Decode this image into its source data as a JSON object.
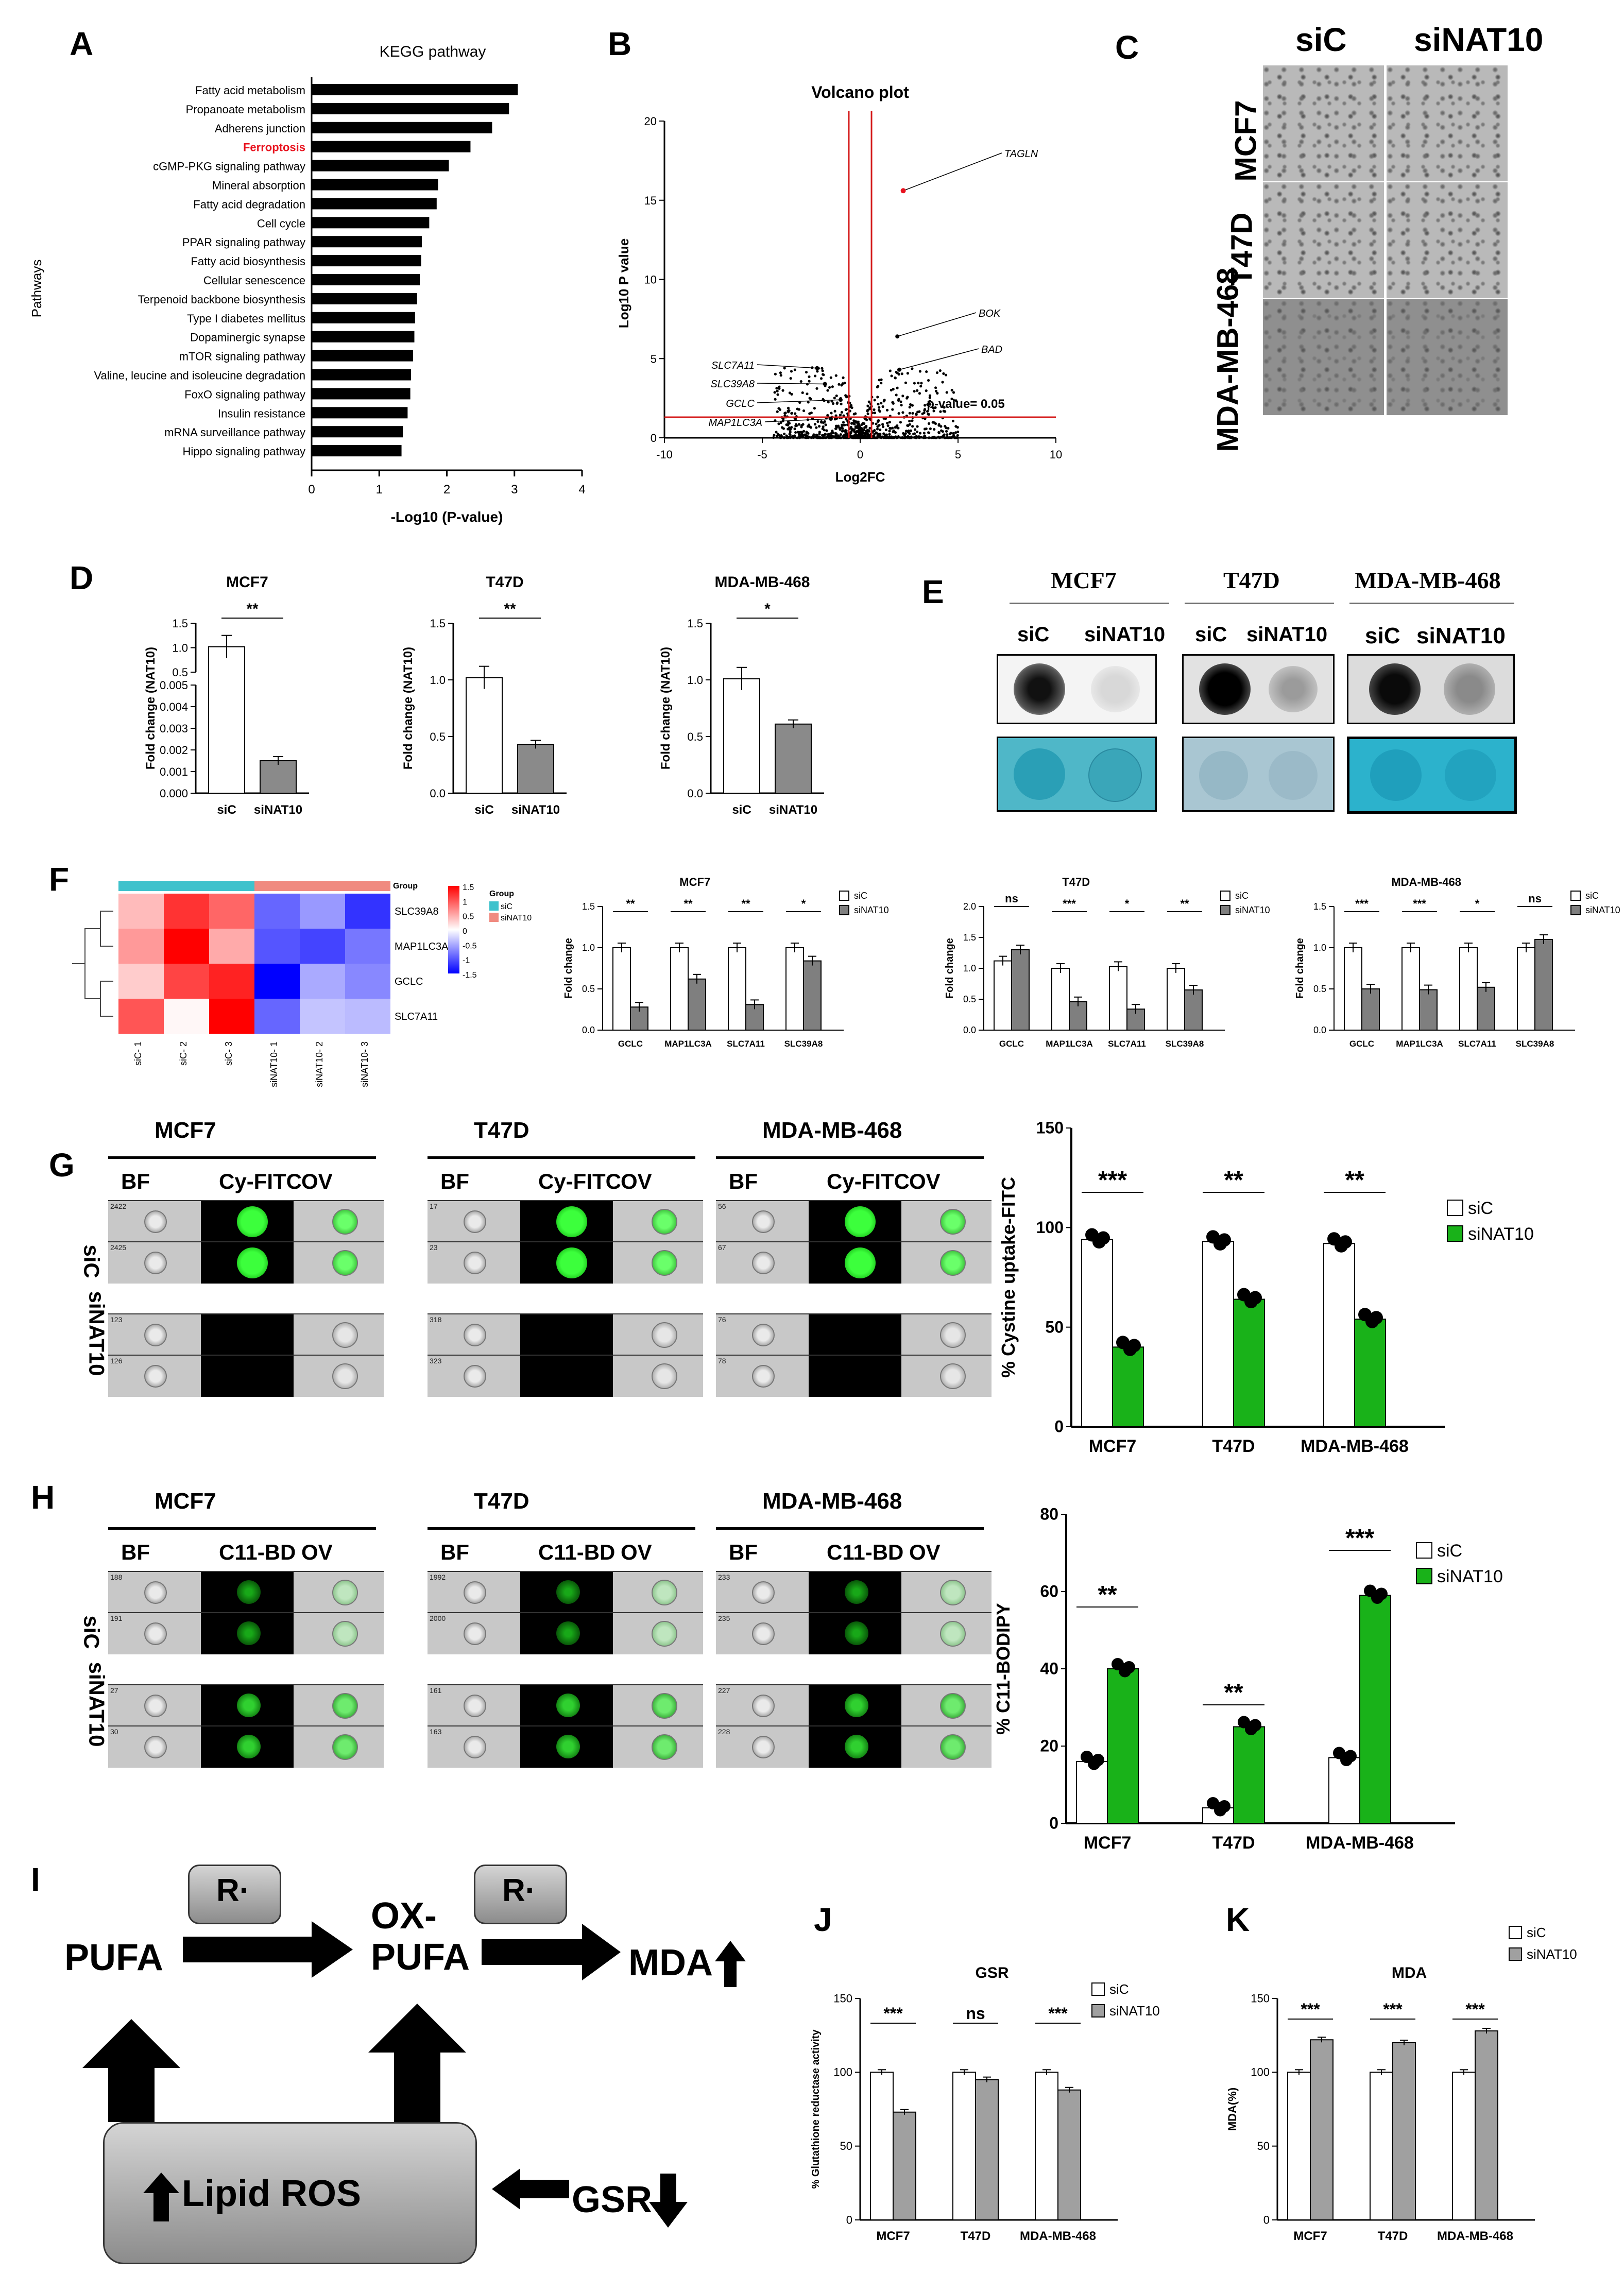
{
  "panels": [
    "A",
    "B",
    "C",
    "D",
    "E",
    "F",
    "G",
    "H",
    "I",
    "J",
    "K"
  ],
  "panel_a": {
    "chart_data": {
      "type": "bar",
      "title": "KEGG pathway",
      "xlabel": "-Log10 (P-value)",
      "ylabel": "Pathways",
      "categories": [
        "Fatty acid metabolism",
        "Propanoate metabolism",
        "Adherens junction",
        "Ferroptosis",
        "cGMP-PKG signaling pathway",
        "Mineral absorption",
        "Fatty acid degradation",
        "Cell cycle",
        "PPAR signaling pathway",
        "Fatty acid biosynthesis",
        "Cellular senescence",
        "Terpenoid backbone biosynthesis",
        "Type I diabetes mellitus",
        "Dopaminergic synapse",
        "mTOR signaling pathway",
        "Valine, leucine and isoleucine degradation",
        "FoxO signaling pathway",
        "Insulin resistance",
        "mRNA surveillance pathway",
        "Hippo signaling pathway"
      ],
      "values": [
        3.05,
        2.92,
        2.67,
        2.35,
        2.03,
        1.87,
        1.85,
        1.74,
        1.63,
        1.62,
        1.6,
        1.56,
        1.53,
        1.52,
        1.5,
        1.47,
        1.46,
        1.42,
        1.35,
        1.33
      ],
      "highlight": "Ferroptosis",
      "highlight_color": "#e8121e",
      "xlim": [
        0,
        4
      ],
      "xticks": [
        "0",
        "1",
        "2",
        "3",
        "4"
      ]
    }
  },
  "panel_b": {
    "chart_data": {
      "type": "scatter",
      "title": "Volcano plot",
      "xlabel": "Log2FC",
      "ylabel": "Log10 P value",
      "xlim": [
        -10,
        10
      ],
      "ylim": [
        0,
        20
      ],
      "xticks": [
        "-10",
        "-5",
        "0",
        "5",
        "10"
      ],
      "yticks": [
        "0",
        "5",
        "10",
        "15",
        "20"
      ],
      "threshold_text": "p-value= 0.05",
      "annotations": [
        {
          "label": "TAGLN",
          "x": 2.2,
          "y": 15.6,
          "color": "#e8121e"
        },
        {
          "label": "BOK",
          "x": 1.9,
          "y": 6.4
        },
        {
          "label": "BAD",
          "x": 2.0,
          "y": 4.3
        },
        {
          "label": "SLC7A11",
          "x": -2.2,
          "y": 4.4
        },
        {
          "label": "SLC39A8",
          "x": -1.8,
          "y": 3.4
        },
        {
          "label": "GCLC",
          "x": -1.0,
          "y": 2.4
        },
        {
          "label": "MAP1LC3A",
          "x": -1.5,
          "y": 1.2
        }
      ]
    }
  },
  "panel_c": {
    "columns": [
      "siC",
      "siNAT10"
    ],
    "rows": [
      "MCF7",
      "T47D",
      "MDA-MB-468"
    ]
  },
  "panel_d": {
    "charts": [
      {
        "title": "MCF7",
        "ylabel": "Fold change (NAT10)",
        "categories": [
          "siC",
          "siNAT10"
        ],
        "values": [
          1.02,
          0.0015
        ],
        "sig": "**",
        "yticks": [
          "0.000",
          "0.001",
          "0.002",
          "0.003",
          "0.004",
          "0.005",
          "0.5",
          "1.0",
          "1.5"
        ]
      },
      {
        "title": "T47D",
        "ylabel": "Fold change (NAT10)",
        "categories": [
          "siC",
          "siNAT10"
        ],
        "values": [
          1.02,
          0.43
        ],
        "sig": "**",
        "yticks": [
          "0.0",
          "0.5",
          "1.0",
          "1.5"
        ]
      },
      {
        "title": "MDA-MB-468",
        "ylabel": "Fold change (NAT10)",
        "categories": [
          "siC",
          "siNAT10"
        ],
        "values": [
          1.01,
          0.61
        ],
        "sig": "*",
        "yticks": [
          "0.0",
          "0.5",
          "1.0",
          "1.5"
        ]
      }
    ]
  },
  "panel_e": {
    "lines": [
      "MCF7",
      "T47D",
      "MDA-MB-468"
    ],
    "lanes": [
      "siC",
      "siNAT10"
    ]
  },
  "panel_f": {
    "heatmap": {
      "group_label": "Group",
      "legend_items": [
        "siC",
        "siNAT10"
      ],
      "legend_colors": [
        "#3fc2cc",
        "#f08a80"
      ],
      "scale_ticks": [
        "1.5",
        "1",
        "0.5",
        "0",
        "-0.5",
        "-1",
        "-1.5"
      ],
      "genes": [
        "SLC39A8",
        "MAP1LC3A",
        "GCLC",
        "SLC7A11"
      ],
      "samples": [
        "siC- 1",
        "siC- 2",
        "siC- 3",
        "siNAT10- 1",
        "siNAT10- 2",
        "siNAT10- 3"
      ],
      "values": [
        [
          0.4,
          1.2,
          0.9,
          -0.9,
          -0.6,
          -1.2
        ],
        [
          0.6,
          1.6,
          0.5,
          -1.0,
          -1.1,
          -0.8
        ],
        [
          0.3,
          1.1,
          1.3,
          -1.5,
          -0.5,
          -0.7
        ],
        [
          1.0,
          0.05,
          1.5,
          -0.9,
          -0.35,
          -0.4
        ]
      ]
    },
    "chart_data": [
      {
        "type": "bar",
        "title": "MCF7",
        "ylabel": "Fold change",
        "categories": [
          "GCLC",
          "MAP1LC3A",
          "SLC7A11",
          "SLC39A8"
        ],
        "series": [
          {
            "name": "siC",
            "values": [
              1.0,
              1.0,
              1.0,
              1.0
            ]
          },
          {
            "name": "siNAT10",
            "values": [
              0.28,
              0.62,
              0.31,
              0.84
            ]
          }
        ],
        "sig": [
          "**",
          "**",
          "**",
          "*"
        ],
        "ylim": [
          0,
          1.5
        ],
        "yticks": [
          "0.0",
          "0.5",
          "1.0",
          "1.5"
        ]
      },
      {
        "type": "bar",
        "title": "T47D",
        "ylabel": "Fold change",
        "categories": [
          "GCLC",
          "MAP1LC3A",
          "SLC7A11",
          "SLC39A8"
        ],
        "series": [
          {
            "name": "siC",
            "values": [
              1.12,
              1.0,
              1.03,
              1.0
            ]
          },
          {
            "name": "siNAT10",
            "values": [
              1.3,
              0.46,
              0.34,
              0.65
            ]
          }
        ],
        "sig": [
          "ns",
          "***",
          "*",
          "**"
        ],
        "ylim": [
          0,
          2.0
        ],
        "yticks": [
          "0.0",
          "0.5",
          "1.0",
          "1.5",
          "2.0"
        ]
      },
      {
        "type": "bar",
        "title": "MDA-MB-468",
        "ylabel": "Fold change",
        "categories": [
          "GCLC",
          "MAP1LC3A",
          "SLC7A11",
          "SLC39A8"
        ],
        "series": [
          {
            "name": "siC",
            "values": [
              1.0,
              1.0,
              1.0,
              1.0
            ]
          },
          {
            "name": "siNAT10",
            "values": [
              0.5,
              0.49,
              0.52,
              1.1
            ]
          }
        ],
        "sig": [
          "***",
          "***",
          "*",
          "ns"
        ],
        "ylim": [
          0,
          1.5
        ],
        "yticks": [
          "0.0",
          "0.5",
          "1.0",
          "1.5"
        ]
      }
    ]
  },
  "panel_g": {
    "lines": [
      "MCF7",
      "T47D",
      "MDA-MB-468"
    ],
    "channels": [
      "BF",
      "Cy-FITC",
      "OV"
    ],
    "rows": [
      "siC",
      "siNAT10"
    ],
    "cell_ids": [
      [
        "2422",
        "2425",
        "123",
        "126"
      ],
      [
        "17",
        "23",
        "318",
        "323"
      ],
      [
        "56",
        "67",
        "76",
        "78"
      ]
    ],
    "chart_data": {
      "type": "bar",
      "ylabel": "% Cystine uptake-FITC",
      "categories": [
        "MCF7",
        "T47D",
        "MDA-MB-468"
      ],
      "series": [
        {
          "name": "siC",
          "values": [
            94,
            93,
            92
          ],
          "color": "#ffffff"
        },
        {
          "name": "siNAT10",
          "values": [
            40,
            64,
            54
          ],
          "color": "#19b219"
        }
      ],
      "sig": [
        "***",
        "**",
        "**"
      ],
      "ylim": [
        0,
        150
      ],
      "yticks": [
        "0",
        "50",
        "100",
        "150"
      ]
    }
  },
  "panel_h": {
    "lines": [
      "MCF7",
      "T47D",
      "MDA-MB-468"
    ],
    "channels": [
      "BF",
      "C11-BD",
      "OV"
    ],
    "rows": [
      "siC",
      "siNAT10"
    ],
    "cell_ids": [
      [
        "188",
        "191",
        "27",
        "30"
      ],
      [
        "1992",
        "2000",
        "161",
        "163"
      ],
      [
        "233",
        "235",
        "227",
        "228"
      ]
    ],
    "chart_data": {
      "type": "bar",
      "ylabel": "% C11-BODIPY",
      "categories": [
        "MCF7",
        "T47D",
        "MDA-MB-468"
      ],
      "series": [
        {
          "name": "siC",
          "values": [
            16,
            4,
            17
          ],
          "color": "#ffffff"
        },
        {
          "name": "siNAT10",
          "values": [
            40,
            25,
            59
          ],
          "color": "#19b219"
        }
      ],
      "sig": [
        "**",
        "**",
        "***"
      ],
      "ylim": [
        0,
        80
      ],
      "yticks": [
        "0",
        "20",
        "40",
        "60",
        "80"
      ]
    }
  },
  "panel_i": {
    "r_label": "R·",
    "pufa": "PUFA",
    "ox_pufa": "OX-\nPUFA",
    "mda": "MDA",
    "lipid_ros": "Lipid ROS",
    "gsr": "GSR"
  },
  "panel_j": {
    "chart_data": {
      "type": "bar",
      "title": "GSR",
      "ylabel": "% Glutathione reductase activity",
      "categories": [
        "MCF7",
        "T47D",
        "MDA-MB-468"
      ],
      "series": [
        {
          "name": "siC",
          "values": [
            100,
            100,
            100
          ]
        },
        {
          "name": "siNAT10",
          "values": [
            73,
            95,
            88
          ]
        }
      ],
      "sig": [
        "***",
        "ns",
        "***"
      ],
      "ylim": [
        0,
        150
      ],
      "yticks": [
        "0",
        "50",
        "100",
        "150"
      ]
    }
  },
  "panel_k": {
    "chart_data": {
      "type": "bar",
      "title": "MDA",
      "ylabel": "MDA(%)",
      "categories": [
        "MCF7",
        "T47D",
        "MDA-MB-468"
      ],
      "series": [
        {
          "name": "siC",
          "values": [
            100,
            100,
            100
          ]
        },
        {
          "name": "siNAT10",
          "values": [
            122,
            120,
            128
          ]
        }
      ],
      "sig": [
        "***",
        "***",
        "***"
      ],
      "ylim": [
        0,
        150
      ],
      "yticks": [
        "0",
        "50",
        "100",
        "150"
      ]
    }
  }
}
